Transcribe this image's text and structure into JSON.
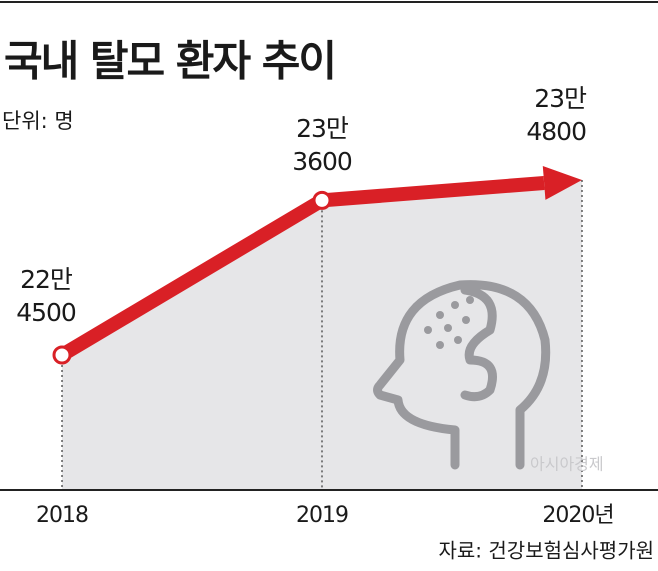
{
  "chart_data": {
    "type": "line",
    "title": "국내 탈모 환자 추이",
    "unit": "단위: 명",
    "source": "자료: 건강보험심사평가원",
    "watermark": "아시아경제",
    "categories": [
      "2018",
      "2019",
      "2020년"
    ],
    "values": [
      224500,
      233600,
      234800
    ],
    "value_labels": [
      [
        "22만",
        "4500"
      ],
      [
        "23만",
        "3600"
      ],
      [
        "23만",
        "4800"
      ]
    ],
    "color": "#d92026",
    "area_color": "#e6e6e8"
  }
}
